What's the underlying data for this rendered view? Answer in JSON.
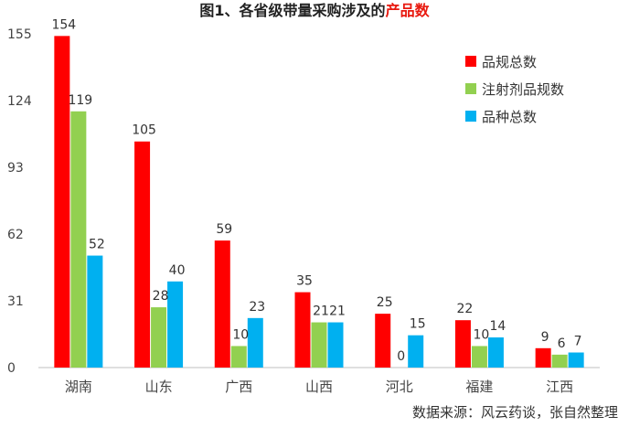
{
  "title_prefix": "图1、各省级带量采购涉及的",
  "title_highlight": "产品数",
  "source": "数据来源：风云药谈，张自然整理",
  "chart_data": {
    "type": "bar",
    "categories": [
      "湖南",
      "山东",
      "广西",
      "山西",
      "河北",
      "福建",
      "江西"
    ],
    "series": [
      {
        "name": "品规总数",
        "color": "#ff0000",
        "values": [
          154,
          105,
          59,
          35,
          25,
          22,
          9
        ]
      },
      {
        "name": "注射剂品规数",
        "color": "#92d050",
        "values": [
          119,
          28,
          10,
          21,
          0,
          10,
          6
        ]
      },
      {
        "name": "品种总数",
        "color": "#00b0f0",
        "values": [
          52,
          40,
          23,
          21,
          15,
          14,
          7
        ]
      }
    ],
    "ylim": [
      0,
      155
    ],
    "yticks": [
      0,
      31,
      62,
      93,
      124,
      155
    ],
    "legend_position": "top-right",
    "grid": false
  }
}
